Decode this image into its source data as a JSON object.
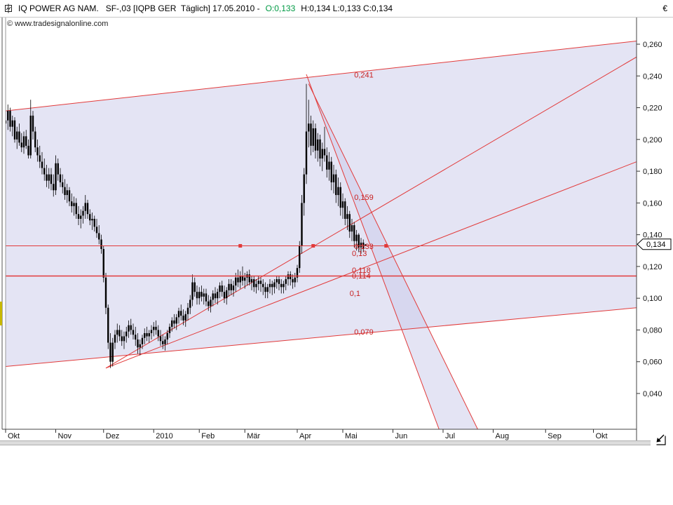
{
  "header": {
    "instrument": "IQ POWER AG NAM.",
    "details": "SF-,03 [IQPB GER  Täglich] 17.05.2010 -",
    "open_label": "O:0,133",
    "hlc_label": "H:0,134 L:0,133 C:0,134",
    "currency": "€",
    "copyright": "© www.tradesignalonline.com"
  },
  "colors": {
    "background": "#ffffff",
    "candle": "#000000",
    "line_red": "#e23a3a",
    "label_red": "#c82020",
    "band_fill": "#c9c9ea",
    "open_green": "#009a44",
    "tag_bg": "#ffffff",
    "tag_border": "#000000"
  },
  "chart_data": {
    "type": "candlestick",
    "title": "IQ POWER AG NAM. SF-,03 [IQPB GER] Täglich 17.05.2010",
    "ylabel": "€",
    "ylim": [
      0.04,
      0.26
    ],
    "grid": false,
    "current_price": {
      "label": "0,134",
      "value": 0.134
    },
    "y_ticks": [
      {
        "label": "0,260",
        "value": 0.26
      },
      {
        "label": "0,240",
        "value": 0.24
      },
      {
        "label": "0,220",
        "value": 0.22
      },
      {
        "label": "0,200",
        "value": 0.2
      },
      {
        "label": "0,180",
        "value": 0.18
      },
      {
        "label": "0,160",
        "value": 0.16
      },
      {
        "label": "0,140",
        "value": 0.14
      },
      {
        "label": "0,120",
        "value": 0.12
      },
      {
        "label": "0,100",
        "value": 0.1
      },
      {
        "label": "0,080",
        "value": 0.08
      },
      {
        "label": "0,060",
        "value": 0.06
      },
      {
        "label": "0,040",
        "value": 0.04
      }
    ],
    "x_ticks": [
      {
        "label": "Okt",
        "day": 0
      },
      {
        "label": "Nov",
        "day": 22
      },
      {
        "label": "Dez",
        "day": 43
      },
      {
        "label": "2010",
        "day": 65
      },
      {
        "label": "Feb",
        "day": 85
      },
      {
        "label": "Mär",
        "day": 105
      },
      {
        "label": "Apr",
        "day": 128
      },
      {
        "label": "Mai",
        "day": 148
      },
      {
        "label": "Jun",
        "day": 170
      },
      {
        "label": "Jul",
        "day": 192
      },
      {
        "label": "Aug",
        "day": 214
      },
      {
        "label": "Sep",
        "day": 237
      },
      {
        "label": "Okt",
        "day": 258
      }
    ],
    "ohlc_format": [
      "open",
      "high",
      "low",
      "close"
    ],
    "candles": [
      [
        0.21,
        0.235,
        0.178,
        0.212
      ],
      [
        0.212,
        0.222,
        0.206,
        0.218
      ],
      [
        0.218,
        0.22,
        0.205,
        0.208
      ],
      [
        0.208,
        0.215,
        0.202,
        0.212
      ],
      [
        0.212,
        0.214,
        0.198,
        0.2
      ],
      [
        0.2,
        0.208,
        0.194,
        0.205
      ],
      [
        0.205,
        0.21,
        0.196,
        0.198
      ],
      [
        0.198,
        0.204,
        0.192,
        0.195
      ],
      [
        0.195,
        0.205,
        0.191,
        0.202
      ],
      [
        0.202,
        0.206,
        0.194,
        0.196
      ],
      [
        0.196,
        0.2,
        0.188,
        0.19
      ],
      [
        0.19,
        0.225,
        0.188,
        0.215
      ],
      [
        0.215,
        0.218,
        0.2,
        0.205
      ],
      [
        0.205,
        0.208,
        0.192,
        0.195
      ],
      [
        0.195,
        0.2,
        0.186,
        0.19
      ],
      [
        0.19,
        0.196,
        0.182,
        0.186
      ],
      [
        0.186,
        0.192,
        0.178,
        0.182
      ],
      [
        0.182,
        0.188,
        0.174,
        0.178
      ],
      [
        0.178,
        0.184,
        0.17,
        0.174
      ],
      [
        0.174,
        0.182,
        0.169,
        0.178
      ],
      [
        0.178,
        0.182,
        0.168,
        0.172
      ],
      [
        0.172,
        0.178,
        0.164,
        0.168
      ],
      [
        0.168,
        0.19,
        0.165,
        0.185
      ],
      [
        0.185,
        0.188,
        0.174,
        0.178
      ],
      [
        0.178,
        0.182,
        0.17,
        0.173
      ],
      [
        0.173,
        0.178,
        0.166,
        0.17
      ],
      [
        0.17,
        0.175,
        0.162,
        0.165
      ],
      [
        0.165,
        0.172,
        0.16,
        0.168
      ],
      [
        0.168,
        0.17,
        0.158,
        0.161
      ],
      [
        0.161,
        0.166,
        0.154,
        0.158
      ],
      [
        0.158,
        0.164,
        0.152,
        0.16
      ],
      [
        0.16,
        0.163,
        0.15,
        0.153
      ],
      [
        0.153,
        0.158,
        0.146,
        0.15
      ],
      [
        0.15,
        0.156,
        0.144,
        0.152
      ],
      [
        0.152,
        0.158,
        0.147,
        0.155
      ],
      [
        0.155,
        0.165,
        0.15,
        0.16
      ],
      [
        0.16,
        0.162,
        0.15,
        0.153
      ],
      [
        0.153,
        0.156,
        0.146,
        0.149
      ],
      [
        0.149,
        0.154,
        0.143,
        0.15
      ],
      [
        0.15,
        0.152,
        0.142,
        0.145
      ],
      [
        0.145,
        0.15,
        0.138,
        0.141
      ],
      [
        0.141,
        0.146,
        0.134,
        0.137
      ],
      [
        0.137,
        0.14,
        0.128,
        0.131
      ],
      [
        0.131,
        0.133,
        0.11,
        0.113
      ],
      [
        0.113,
        0.116,
        0.09,
        0.094
      ],
      [
        0.094,
        0.096,
        0.068,
        0.072
      ],
      [
        0.072,
        0.078,
        0.056,
        0.06
      ],
      [
        0.06,
        0.075,
        0.057,
        0.072
      ],
      [
        0.072,
        0.08,
        0.068,
        0.077
      ],
      [
        0.077,
        0.084,
        0.072,
        0.08
      ],
      [
        0.08,
        0.083,
        0.073,
        0.076
      ],
      [
        0.076,
        0.08,
        0.07,
        0.073
      ],
      [
        0.073,
        0.079,
        0.068,
        0.076
      ],
      [
        0.076,
        0.082,
        0.072,
        0.079
      ],
      [
        0.079,
        0.086,
        0.075,
        0.083
      ],
      [
        0.083,
        0.087,
        0.077,
        0.08
      ],
      [
        0.08,
        0.084,
        0.074,
        0.077
      ],
      [
        0.077,
        0.082,
        0.07,
        0.074
      ],
      [
        0.074,
        0.078,
        0.065,
        0.069
      ],
      [
        0.069,
        0.074,
        0.064,
        0.071
      ],
      [
        0.071,
        0.077,
        0.068,
        0.075
      ],
      [
        0.075,
        0.081,
        0.071,
        0.078
      ],
      [
        0.078,
        0.082,
        0.073,
        0.076
      ],
      [
        0.076,
        0.08,
        0.072,
        0.078
      ],
      [
        0.078,
        0.083,
        0.074,
        0.08
      ],
      [
        0.08,
        0.085,
        0.076,
        0.082
      ],
      [
        0.082,
        0.086,
        0.077,
        0.08
      ],
      [
        0.08,
        0.083,
        0.073,
        0.076
      ],
      [
        0.076,
        0.08,
        0.07,
        0.073
      ],
      [
        0.073,
        0.077,
        0.068,
        0.071
      ],
      [
        0.071,
        0.076,
        0.067,
        0.074
      ],
      [
        0.074,
        0.08,
        0.071,
        0.078
      ],
      [
        0.078,
        0.084,
        0.075,
        0.082
      ],
      [
        0.082,
        0.088,
        0.079,
        0.086
      ],
      [
        0.086,
        0.09,
        0.081,
        0.084
      ],
      [
        0.084,
        0.09,
        0.08,
        0.088
      ],
      [
        0.088,
        0.094,
        0.084,
        0.092
      ],
      [
        0.092,
        0.096,
        0.086,
        0.089
      ],
      [
        0.089,
        0.093,
        0.083,
        0.086
      ],
      [
        0.086,
        0.092,
        0.082,
        0.09
      ],
      [
        0.09,
        0.097,
        0.086,
        0.094
      ],
      [
        0.094,
        0.102,
        0.09,
        0.099
      ],
      [
        0.099,
        0.115,
        0.095,
        0.11
      ],
      [
        0.11,
        0.113,
        0.101,
        0.104
      ],
      [
        0.104,
        0.108,
        0.096,
        0.1
      ],
      [
        0.1,
        0.107,
        0.096,
        0.104
      ],
      [
        0.104,
        0.108,
        0.098,
        0.101
      ],
      [
        0.101,
        0.106,
        0.096,
        0.103
      ],
      [
        0.103,
        0.106,
        0.095,
        0.098
      ],
      [
        0.098,
        0.102,
        0.092,
        0.095
      ],
      [
        0.095,
        0.101,
        0.091,
        0.099
      ],
      [
        0.099,
        0.105,
        0.095,
        0.103
      ],
      [
        0.103,
        0.107,
        0.097,
        0.1
      ],
      [
        0.1,
        0.106,
        0.096,
        0.104
      ],
      [
        0.104,
        0.11,
        0.1,
        0.108
      ],
      [
        0.108,
        0.111,
        0.101,
        0.104
      ],
      [
        0.104,
        0.108,
        0.097,
        0.1
      ],
      [
        0.1,
        0.107,
        0.096,
        0.105
      ],
      [
        0.105,
        0.112,
        0.101,
        0.109
      ],
      [
        0.109,
        0.112,
        0.102,
        0.105
      ],
      [
        0.105,
        0.111,
        0.101,
        0.108
      ],
      [
        0.108,
        0.116,
        0.104,
        0.113
      ],
      [
        0.113,
        0.118,
        0.107,
        0.11
      ],
      [
        0.11,
        0.117,
        0.106,
        0.114
      ],
      [
        0.114,
        0.12,
        0.108,
        0.111
      ],
      [
        0.111,
        0.116,
        0.106,
        0.113
      ],
      [
        0.113,
        0.117,
        0.108,
        0.115
      ],
      [
        0.115,
        0.118,
        0.108,
        0.11
      ],
      [
        0.11,
        0.114,
        0.105,
        0.112
      ],
      [
        0.112,
        0.114,
        0.104,
        0.107
      ],
      [
        0.107,
        0.112,
        0.103,
        0.109
      ],
      [
        0.109,
        0.114,
        0.105,
        0.111
      ],
      [
        0.111,
        0.113,
        0.104,
        0.109
      ],
      [
        0.109,
        0.112,
        0.102,
        0.107
      ],
      [
        0.107,
        0.11,
        0.1,
        0.104
      ],
      [
        0.104,
        0.109,
        0.1,
        0.107
      ],
      [
        0.107,
        0.112,
        0.103,
        0.109
      ],
      [
        0.109,
        0.111,
        0.102,
        0.107
      ],
      [
        0.107,
        0.112,
        0.103,
        0.11
      ],
      [
        0.11,
        0.114,
        0.106,
        0.112
      ],
      [
        0.112,
        0.114,
        0.105,
        0.109
      ],
      [
        0.109,
        0.112,
        0.103,
        0.107
      ],
      [
        0.107,
        0.111,
        0.103,
        0.109
      ],
      [
        0.109,
        0.114,
        0.105,
        0.112
      ],
      [
        0.112,
        0.117,
        0.108,
        0.115
      ],
      [
        0.115,
        0.117,
        0.108,
        0.112
      ],
      [
        0.112,
        0.115,
        0.106,
        0.11
      ],
      [
        0.11,
        0.116,
        0.107,
        0.113
      ],
      [
        0.113,
        0.121,
        0.11,
        0.119
      ],
      [
        0.119,
        0.136,
        0.116,
        0.133
      ],
      [
        0.133,
        0.165,
        0.128,
        0.16
      ],
      [
        0.16,
        0.182,
        0.152,
        0.178
      ],
      [
        0.178,
        0.235,
        0.172,
        0.205
      ],
      [
        0.205,
        0.225,
        0.195,
        0.21
      ],
      [
        0.21,
        0.215,
        0.19,
        0.196
      ],
      [
        0.196,
        0.212,
        0.192,
        0.207
      ],
      [
        0.207,
        0.21,
        0.188,
        0.193
      ],
      [
        0.193,
        0.204,
        0.186,
        0.2
      ],
      [
        0.2,
        0.203,
        0.183,
        0.188
      ],
      [
        0.188,
        0.198,
        0.18,
        0.194
      ],
      [
        0.194,
        0.208,
        0.186,
        0.19
      ],
      [
        0.19,
        0.195,
        0.176,
        0.181
      ],
      [
        0.181,
        0.192,
        0.174,
        0.186
      ],
      [
        0.186,
        0.189,
        0.168,
        0.173
      ],
      [
        0.173,
        0.184,
        0.166,
        0.178
      ],
      [
        0.178,
        0.181,
        0.16,
        0.165
      ],
      [
        0.165,
        0.176,
        0.158,
        0.17
      ],
      [
        0.17,
        0.173,
        0.152,
        0.157
      ],
      [
        0.157,
        0.166,
        0.15,
        0.161
      ],
      [
        0.161,
        0.163,
        0.146,
        0.15
      ],
      [
        0.15,
        0.158,
        0.143,
        0.153
      ],
      [
        0.153,
        0.155,
        0.138,
        0.142
      ],
      [
        0.142,
        0.15,
        0.136,
        0.146
      ],
      [
        0.146,
        0.148,
        0.132,
        0.136
      ],
      [
        0.136,
        0.143,
        0.13,
        0.14
      ],
      [
        0.14,
        0.141,
        0.129,
        0.132
      ],
      [
        0.132,
        0.138,
        0.128,
        0.135
      ],
      [
        0.135,
        0.137,
        0.129,
        0.131
      ],
      [
        0.133,
        0.134,
        0.133,
        0.134
      ]
    ],
    "annotations": {
      "shaded_bands": [
        {
          "name": "rising-channel-band",
          "points": [
            [
              0,
              0.218
            ],
            [
              277,
              0.262
            ],
            [
              277,
              0.094
            ],
            [
              0,
              0.057
            ]
          ]
        },
        {
          "name": "falling-wedge-band",
          "points": [
            [
              132,
              0.241
            ],
            [
              200,
              -0.02
            ],
            [
              220,
              -0.02
            ],
            [
              133,
              0.235
            ]
          ]
        }
      ],
      "trend_lines": [
        {
          "name": "rising-channel-top-line",
          "d1": 0,
          "p1": 0.218,
          "d2": 277,
          "p2": 0.262
        },
        {
          "name": "rising-channel-bottom-line",
          "d1": 0,
          "p1": 0.057,
          "d2": 277,
          "p2": 0.094
        },
        {
          "name": "fan-line-1",
          "d1": 44,
          "p1": 0.056,
          "d2": 277,
          "p2": 0.186
        },
        {
          "name": "fan-line-2",
          "d1": 44,
          "p1": 0.056,
          "d2": 277,
          "p2": 0.252
        },
        {
          "name": "falling-wedge-left-line",
          "d1": 132,
          "p1": 0.241,
          "d2": 200,
          "p2": -0.02
        },
        {
          "name": "falling-wedge-right-line",
          "d1": 133,
          "p1": 0.235,
          "d2": 220,
          "p2": -0.02
        }
      ],
      "horizontal_lines": [
        {
          "price": 0.133,
          "label": "0,133",
          "width": 1
        },
        {
          "price": 0.114,
          "label": "0,114",
          "width": 1.5
        }
      ],
      "markers": [
        {
          "day": 103,
          "price": 0.133
        },
        {
          "day": 135,
          "price": 0.133
        },
        {
          "day": 167,
          "price": 0.133
        }
      ],
      "labels": [
        {
          "text": "0,241",
          "day": 153,
          "price": 0.239
        },
        {
          "text": "0,159",
          "day": 153,
          "price": 0.162
        },
        {
          "text": "0,133",
          "day": 153,
          "price": 0.131
        },
        {
          "text": "0,13",
          "day": 152,
          "price": 0.1265
        },
        {
          "text": "0,118",
          "day": 152,
          "price": 0.116
        },
        {
          "text": "0,114",
          "day": 152,
          "price": 0.1125
        },
        {
          "text": "0,1",
          "day": 151,
          "price": 0.1015
        },
        {
          "text": "0,079",
          "day": 153,
          "price": 0.077
        }
      ]
    }
  }
}
